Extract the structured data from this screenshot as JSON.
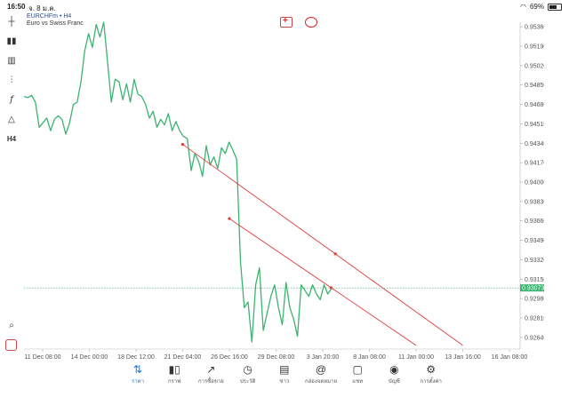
{
  "status": {
    "time": "16:50",
    "date": "จ. 8 ม.ค.",
    "battery": "69%"
  },
  "symbol": {
    "name": "EURCHFm • H4",
    "description": "Euro vs Swiss Franc"
  },
  "toolbar_icons": [
    "crosshair-icon",
    "candlestick-icon",
    "bar-chart-icon",
    "indicators-icon",
    "function-icon",
    "objects-icon",
    "timeframe-h4"
  ],
  "toolbar": {
    "timeframe": "H4"
  },
  "current_price": "0.93073",
  "chart_data": {
    "type": "line",
    "series": [
      {
        "values": [
          0.9475,
          0.9474,
          0.9476,
          0.947,
          0.9448,
          0.9452,
          0.9456,
          0.9445,
          0.9455,
          0.9458,
          0.9455,
          0.9442,
          0.9452,
          0.9468,
          0.947,
          0.9488,
          0.9515,
          0.953,
          0.9518,
          0.9538,
          0.9527,
          0.954,
          0.9505,
          0.947,
          0.949,
          0.9488,
          0.9472,
          0.9486,
          0.947,
          0.949,
          0.9477,
          0.9475,
          0.9468,
          0.9456,
          0.9462,
          0.9448,
          0.9455,
          0.945,
          0.946,
          0.9445,
          0.9453,
          0.9445,
          0.944,
          0.9438,
          0.941,
          0.9425,
          0.9418,
          0.9405,
          0.9432,
          0.9415,
          0.9422,
          0.9412,
          0.943,
          0.9425,
          0.9435,
          0.9428,
          0.942,
          0.933,
          0.929,
          0.9295,
          0.926,
          0.931,
          0.9325,
          0.927,
          0.9285,
          0.93,
          0.931,
          0.929,
          0.9275,
          0.9312,
          0.929,
          0.928,
          0.9265,
          0.931,
          0.9305,
          0.93,
          0.931,
          0.9302,
          0.9297,
          0.931,
          0.9302,
          0.9307
        ]
      }
    ],
    "x_tick_labels": [
      "11 Dec 08:00",
      "14 Dec 00:00",
      "18 Dec 12:00",
      "21 Dec 04:00",
      "26 Dec 16:00",
      "29 Dec 08:00",
      "3 Jan 20:00",
      "8 Jan 08:00",
      "11 Jan 00:00",
      "13 Jan 16:00",
      "16 Jan 08:00"
    ],
    "y_tick_labels": [
      "0.95360",
      "0.95190",
      "0.95020",
      "0.94850",
      "0.94680",
      "0.94510",
      "0.94340",
      "0.94170",
      "0.94000",
      "0.93830",
      "0.93660",
      "0.93490",
      "0.93320",
      "0.93150",
      "0.92980",
      "0.92810",
      "0.92640"
    ],
    "ylim": [
      0.926,
      0.954
    ],
    "trendlines": [
      {
        "from": [
          "21 Dec 04:00",
          0.9433
        ],
        "to": [
          "13 Jan 16:00",
          0.9257
        ]
      },
      {
        "from": [
          "26 Dec 16:00",
          0.9368
        ],
        "to": [
          "11 Jan 00:00",
          0.9257
        ]
      }
    ],
    "colors": {
      "line": "#3cb371",
      "trendline": "#e23b3b",
      "price_line": "#3cb371",
      "price_tag": "#3cb371"
    }
  },
  "nav": [
    {
      "label": "ราคา",
      "icon": "quotes-icon",
      "active": true
    },
    {
      "label": "กราฟ",
      "icon": "chart-icon"
    },
    {
      "label": "การซื้อขาย",
      "icon": "trade-icon"
    },
    {
      "label": "ประวัติ",
      "icon": "history-icon"
    },
    {
      "label": "ข่าว",
      "icon": "news-icon"
    },
    {
      "label": "กล่องจดหมาย",
      "icon": "mailbox-icon"
    },
    {
      "label": "แชท",
      "icon": "chat-icon"
    },
    {
      "label": "บัญชี",
      "icon": "account-icon"
    },
    {
      "label": "การตั้งค่า",
      "icon": "settings-icon"
    }
  ]
}
